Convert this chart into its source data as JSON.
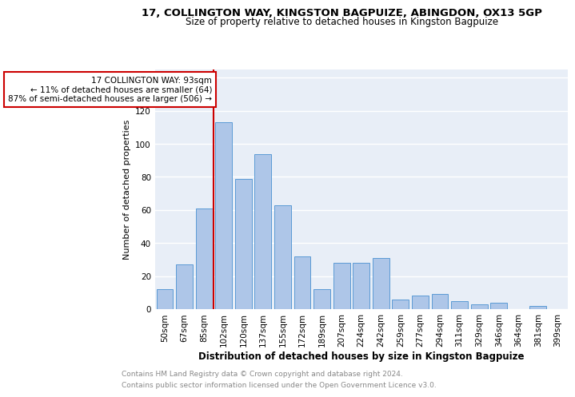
{
  "title": "17, COLLINGTON WAY, KINGSTON BAGPUIZE, ABINGDON, OX13 5GP",
  "subtitle": "Size of property relative to detached houses in Kingston Bagpuize",
  "xlabel": "Distribution of detached houses by size in Kingston Bagpuize",
  "ylabel": "Number of detached properties",
  "footer1": "Contains HM Land Registry data © Crown copyright and database right 2024.",
  "footer2": "Contains public sector information licensed under the Open Government Licence v3.0.",
  "categories": [
    "50sqm",
    "67sqm",
    "85sqm",
    "102sqm",
    "120sqm",
    "137sqm",
    "155sqm",
    "172sqm",
    "189sqm",
    "207sqm",
    "224sqm",
    "242sqm",
    "259sqm",
    "277sqm",
    "294sqm",
    "311sqm",
    "329sqm",
    "346sqm",
    "364sqm",
    "381sqm",
    "399sqm"
  ],
  "values": [
    12,
    27,
    61,
    113,
    79,
    94,
    63,
    32,
    12,
    28,
    28,
    31,
    6,
    8,
    9,
    5,
    3,
    4,
    0,
    2,
    0
  ],
  "bar_color": "#aec6e8",
  "bar_edge_color": "#5b9bd5",
  "vline_color": "#cc0000",
  "annotation_title": "17 COLLINGTON WAY: 93sqm",
  "annotation_line1": "← 11% of detached houses are smaller (64)",
  "annotation_line2": "87% of semi-detached houses are larger (506) →",
  "annotation_box_color": "#cc0000",
  "ylim": [
    0,
    145
  ],
  "yticks": [
    0,
    20,
    40,
    60,
    80,
    100,
    120,
    140
  ],
  "background_color": "#e8eef7",
  "title_fontsize": 9.5,
  "subtitle_fontsize": 8.5,
  "ylabel_fontsize": 8,
  "xlabel_fontsize": 8.5,
  "tick_fontsize": 7.5,
  "footer_fontsize": 6.5,
  "footer_color": "#888888"
}
